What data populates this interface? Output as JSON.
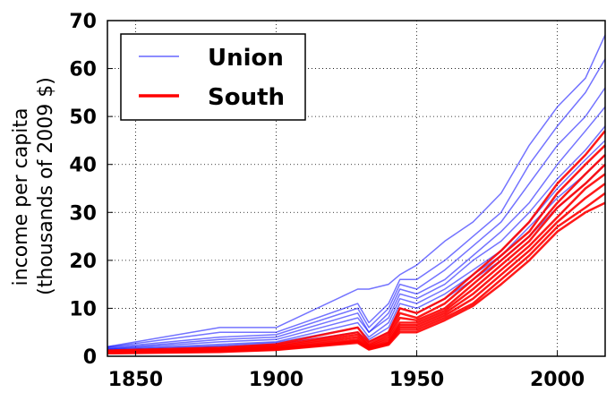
{
  "chart_data": {
    "type": "line",
    "title": "",
    "xlabel": "",
    "ylabel_line1": "income per capita",
    "ylabel_line2": "(thousands of 2009 $)",
    "xlim": [
      1840,
      2017
    ],
    "ylim": [
      0,
      70
    ],
    "x_ticks": [
      1850,
      1900,
      1950,
      2000
    ],
    "y_ticks": [
      0,
      10,
      20,
      30,
      40,
      50,
      60,
      70
    ],
    "grid": true,
    "legend_placement": "top-left",
    "series_colors": {
      "Union": "#0000ff",
      "South": "#ff0000"
    },
    "series": [
      {
        "name": "Union",
        "x": [
          1840,
          1880,
          1900,
          1929,
          1933,
          1940,
          1944,
          1950,
          1960,
          1970,
          1980,
          1990,
          2000,
          2010,
          2017
        ],
        "values": [
          2,
          6,
          6,
          14,
          14,
          15,
          17,
          19,
          24,
          28,
          34,
          44,
          52,
          58,
          67
        ]
      },
      {
        "name": "Union",
        "x": [
          1840,
          1880,
          1900,
          1929,
          1933,
          1940,
          1944,
          1950,
          1960,
          1970,
          1980,
          1990,
          2000,
          2010,
          2017
        ],
        "values": [
          1.9,
          5,
          5,
          11,
          7,
          11,
          16,
          16,
          20,
          25,
          30,
          40,
          48,
          55,
          62
        ]
      },
      {
        "name": "Union",
        "x": [
          1840,
          1880,
          1900,
          1929,
          1933,
          1940,
          1944,
          1950,
          1960,
          1970,
          1980,
          1990,
          2000,
          2010,
          2017
        ],
        "values": [
          1.8,
          4,
          4.5,
          10,
          6,
          10,
          15,
          14,
          18,
          23,
          28,
          36,
          44,
          50,
          56
        ]
      },
      {
        "name": "Union",
        "x": [
          1840,
          1880,
          1900,
          1929,
          1933,
          1940,
          1944,
          1950,
          1960,
          1970,
          1980,
          1990,
          2000,
          2010,
          2017
        ],
        "values": [
          1.6,
          3.5,
          4,
          9,
          5,
          9,
          14,
          13,
          16,
          21,
          26,
          32,
          40,
          47,
          52
        ]
      },
      {
        "name": "Union",
        "x": [
          1840,
          1880,
          1900,
          1929,
          1933,
          1940,
          1944,
          1950,
          1960,
          1970,
          1980,
          1990,
          2000,
          2010,
          2017
        ],
        "values": [
          1.5,
          3,
          3.5,
          8,
          5,
          8,
          13,
          12,
          15,
          20,
          24,
          30,
          37,
          43,
          48
        ]
      },
      {
        "name": "Union",
        "x": [
          1840,
          1880,
          1900,
          1929,
          1933,
          1940,
          1944,
          1950,
          1960,
          1970,
          1980,
          1990,
          2000,
          2010,
          2017
        ],
        "values": [
          1.4,
          2.5,
          3,
          7,
          4,
          7,
          12,
          11,
          14,
          18,
          22,
          28,
          35,
          41,
          45
        ]
      },
      {
        "name": "Union",
        "x": [
          1840,
          1880,
          1900,
          1929,
          1933,
          1940,
          1944,
          1950,
          1960,
          1970,
          1980,
          1990,
          2000,
          2010,
          2017
        ],
        "values": [
          1.3,
          2.2,
          2.8,
          6,
          3.5,
          6,
          11,
          10,
          13,
          17,
          21,
          27,
          33,
          38,
          42
        ]
      },
      {
        "name": "Union",
        "x": [
          1840,
          1880,
          1900,
          1929,
          1933,
          1940,
          1944,
          1950,
          1960,
          1970,
          1980,
          1990,
          2000,
          2010,
          2017
        ],
        "values": [
          1.2,
          2,
          2.5,
          5,
          3,
          5,
          10,
          9,
          12,
          16,
          20,
          25,
          31,
          36,
          40
        ]
      },
      {
        "name": "South",
        "x": [
          1840,
          1880,
          1900,
          1929,
          1933,
          1940,
          1944,
          1950,
          1960,
          1970,
          1980,
          1990,
          2000,
          2010,
          2017
        ],
        "values": [
          1.2,
          1.8,
          2.5,
          6,
          3,
          5,
          10,
          9,
          12,
          17,
          22,
          28,
          36,
          42,
          47
        ]
      },
      {
        "name": "South",
        "x": [
          1840,
          1880,
          1900,
          1929,
          1933,
          1940,
          1944,
          1950,
          1960,
          1970,
          1980,
          1990,
          2000,
          2010,
          2017
        ],
        "values": [
          1.1,
          1.6,
          2.2,
          5,
          2.5,
          4.5,
          9,
          8,
          11,
          16,
          21,
          26,
          34,
          40,
          44
        ]
      },
      {
        "name": "South",
        "x": [
          1840,
          1880,
          1900,
          1929,
          1933,
          1940,
          1944,
          1950,
          1960,
          1970,
          1980,
          1990,
          2000,
          2010,
          2017
        ],
        "values": [
          1,
          1.4,
          2,
          4.5,
          2.2,
          4,
          8,
          7.5,
          10,
          15,
          20,
          25,
          32,
          38,
          42
        ]
      },
      {
        "name": "South",
        "x": [
          1840,
          1880,
          1900,
          1929,
          1933,
          1940,
          1944,
          1950,
          1960,
          1970,
          1980,
          1990,
          2000,
          2010,
          2017
        ],
        "values": [
          0.9,
          1.3,
          1.8,
          4,
          2,
          3.5,
          7,
          7,
          9.5,
          14,
          19,
          24,
          31,
          36,
          40
        ]
      },
      {
        "name": "South",
        "x": [
          1840,
          1880,
          1900,
          1929,
          1933,
          1940,
          1944,
          1950,
          1960,
          1970,
          1980,
          1990,
          2000,
          2010,
          2017
        ],
        "values": [
          0.8,
          1.2,
          1.6,
          3.5,
          1.8,
          3,
          6.5,
          6.5,
          9,
          13,
          18,
          23,
          29,
          35,
          38
        ]
      },
      {
        "name": "South",
        "x": [
          1840,
          1880,
          1900,
          1929,
          1933,
          1940,
          1944,
          1950,
          1960,
          1970,
          1980,
          1990,
          2000,
          2010,
          2017
        ],
        "values": [
          0.8,
          1.1,
          1.5,
          3.2,
          1.6,
          2.8,
          6,
          6,
          8.5,
          12,
          17,
          22,
          28,
          33,
          36
        ]
      },
      {
        "name": "South",
        "x": [
          1840,
          1880,
          1900,
          1929,
          1933,
          1940,
          1944,
          1950,
          1960,
          1970,
          1980,
          1990,
          2000,
          2010,
          2017
        ],
        "values": [
          0.7,
          1,
          1.4,
          3,
          1.5,
          2.6,
          5.5,
          5.5,
          8,
          11,
          16,
          21,
          27,
          31,
          34
        ]
      },
      {
        "name": "South",
        "x": [
          1840,
          1880,
          1900,
          1929,
          1933,
          1940,
          1944,
          1950,
          1960,
          1970,
          1980,
          1990,
          2000,
          2010,
          2017
        ],
        "values": [
          0.6,
          0.9,
          1.3,
          2.8,
          1.4,
          2.4,
          5,
          5,
          7.5,
          10.5,
          15,
          20,
          26,
          30,
          32
        ]
      }
    ]
  },
  "legend": {
    "items": [
      {
        "label": "Union",
        "color": "#0000ff"
      },
      {
        "label": "South",
        "color": "#ff0000"
      }
    ]
  }
}
